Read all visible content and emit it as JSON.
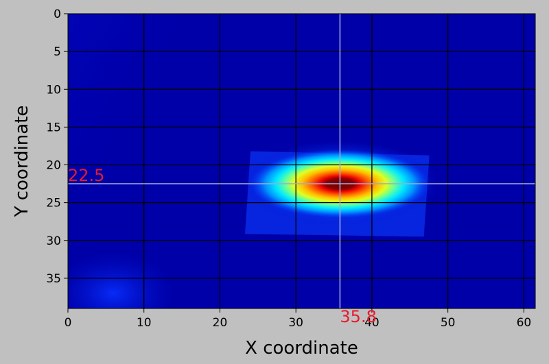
{
  "chart_data": {
    "type": "heatmap",
    "title": "",
    "xlabel": "X coordinate",
    "ylabel": "Y coordinate",
    "xlim": [
      0,
      61.5
    ],
    "ylim": [
      39,
      0
    ],
    "x_ticks": [
      0,
      10,
      20,
      30,
      40,
      50,
      60
    ],
    "y_ticks": [
      0,
      5,
      10,
      15,
      20,
      25,
      30,
      35
    ],
    "grid": true,
    "colormap": "jet",
    "crosshair": {
      "x": 35.8,
      "y": 22.5,
      "x_label": "35.8",
      "y_label": "22.5"
    },
    "hotspot": {
      "center_x": 35.8,
      "center_y": 22.5,
      "band_x_range": [
        23.3,
        47.2
      ],
      "band_y_range": [
        18.2,
        29.5
      ]
    }
  },
  "colors": {
    "background": "#c0c0c0",
    "grid": "#000000",
    "crosshair": "#9fa8d8",
    "annotation": "#e8192c",
    "field_base": "#0000a8"
  }
}
